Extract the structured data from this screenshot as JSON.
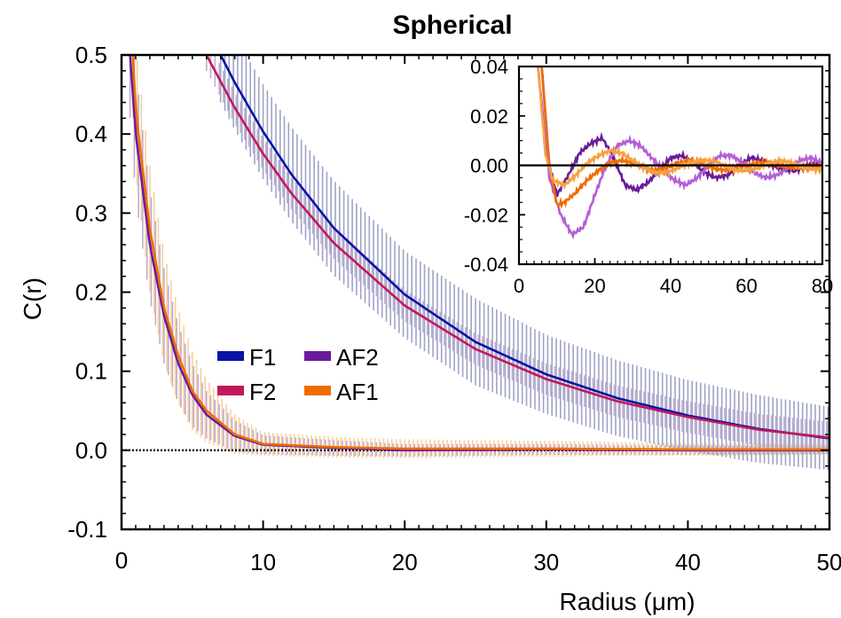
{
  "chart_data": [
    {
      "type": "line",
      "title": "Spherical",
      "xlabel": "Radius (μm)",
      "ylabel": "C(r)",
      "xlim": [
        0,
        50
      ],
      "ylim": [
        -0.1,
        0.5
      ],
      "x_ticks": [
        "0",
        "10",
        "20",
        "30",
        "40",
        "50"
      ],
      "y_ticks": [
        "0.5",
        "0.4",
        "0.3",
        "0.2",
        "0.1",
        "0.0",
        "-0.1"
      ],
      "reference_line": {
        "y": 0.0,
        "style": "dotted",
        "color": "#000000"
      },
      "error_bars": true,
      "legend": {
        "position": "center-left"
      },
      "series": [
        {
          "name": "F1",
          "color": "#0a14a6",
          "bar_color": "#8f94bd",
          "x": [
            7,
            8,
            10,
            12,
            15,
            20,
            25,
            30,
            35,
            40,
            45,
            50
          ],
          "y": [
            0.5,
            0.465,
            0.403,
            0.349,
            0.281,
            0.197,
            0.137,
            0.096,
            0.066,
            0.044,
            0.027,
            0.015
          ],
          "error": [
            0.06,
            0.06,
            0.06,
            0.06,
            0.06,
            0.055,
            0.055,
            0.05,
            0.048,
            0.045,
            0.043,
            0.04
          ]
        },
        {
          "name": "F2",
          "color": "#c2185b",
          "bar_color": "#b3a0c8",
          "x": [
            6,
            8,
            10,
            12,
            15,
            20,
            25,
            30,
            35,
            40,
            45,
            50
          ],
          "y": [
            0.5,
            0.433,
            0.375,
            0.325,
            0.262,
            0.183,
            0.128,
            0.09,
            0.062,
            0.042,
            0.026,
            0.016
          ],
          "error": [
            0.02,
            0.02,
            0.02,
            0.02,
            0.02,
            0.02,
            0.02,
            0.02,
            0.02,
            0.02,
            0.02,
            0.02
          ]
        },
        {
          "name": "AF2",
          "color": "#6a1b9a",
          "bar_color": "#b79bc7",
          "x": [
            0.6,
            1,
            2,
            3,
            4,
            5,
            6,
            8,
            10,
            15,
            20,
            30,
            40,
            50
          ],
          "y": [
            0.5,
            0.4,
            0.26,
            0.17,
            0.11,
            0.07,
            0.045,
            0.018,
            0.007,
            0.003,
            0.0,
            0.001,
            0.0,
            0.0
          ],
          "error": [
            0.08,
            0.08,
            0.07,
            0.06,
            0.05,
            0.04,
            0.03,
            0.02,
            0.012,
            0.01,
            0.008,
            0.007,
            0.006,
            0.005
          ]
        },
        {
          "name": "AF1",
          "color": "#ef6c00",
          "bar_color": "#f5c98f",
          "x": [
            0.8,
            1,
            2,
            3,
            4,
            5,
            6,
            8,
            10,
            15,
            20,
            30,
            40,
            50
          ],
          "y": [
            0.5,
            0.43,
            0.28,
            0.18,
            0.12,
            0.075,
            0.05,
            0.02,
            0.008,
            0.004,
            0.002,
            0.002,
            0.001,
            0.001
          ],
          "error": [
            0.08,
            0.08,
            0.08,
            0.07,
            0.06,
            0.05,
            0.04,
            0.025,
            0.015,
            0.013,
            0.012,
            0.01,
            0.008,
            0.006
          ]
        }
      ]
    },
    {
      "type": "line",
      "title": "",
      "inset": true,
      "xlabel": "",
      "ylabel": "",
      "xlim": [
        0,
        80
      ],
      "ylim": [
        -0.04,
        0.04
      ],
      "x_ticks": [
        "0",
        "20",
        "40",
        "60",
        "80"
      ],
      "y_ticks": [
        "0.04",
        "0.02",
        "0.00",
        "-0.02",
        "-0.04"
      ],
      "reference_line": {
        "y": 0.0,
        "style": "solid",
        "color": "#000000"
      },
      "series": [
        {
          "name": "AF2",
          "color": "#6a1b9a",
          "x": [
            6,
            8,
            10,
            13,
            16,
            19,
            22,
            25,
            28,
            31,
            34,
            37,
            40,
            43,
            46,
            49,
            52,
            55,
            58,
            61,
            64,
            67,
            70,
            73,
            76,
            80
          ],
          "y": [
            0.04,
            0.0,
            -0.012,
            -0.004,
            0.005,
            0.009,
            0.011,
            0.003,
            -0.008,
            -0.01,
            -0.007,
            -0.002,
            0.003,
            0.004,
            0.001,
            -0.003,
            -0.005,
            -0.004,
            0.0,
            0.003,
            0.002,
            0.0,
            -0.002,
            -0.002,
            0.0,
            0.001
          ]
        },
        {
          "name": "AF2 (light)",
          "color": "#b35fd6",
          "x": [
            5,
            8,
            11,
            14,
            17,
            20,
            23,
            26,
            29,
            32,
            35,
            38,
            41,
            44,
            47,
            50,
            53,
            56,
            59,
            62,
            65,
            68,
            71,
            74,
            77,
            80
          ],
          "y": [
            0.04,
            -0.005,
            -0.02,
            -0.028,
            -0.025,
            -0.012,
            0.0,
            0.008,
            0.01,
            0.008,
            0.003,
            -0.002,
            -0.006,
            -0.008,
            -0.005,
            0.0,
            0.004,
            0.004,
            0.001,
            -0.003,
            -0.005,
            -0.004,
            -0.001,
            0.002,
            0.003,
            0.001
          ]
        },
        {
          "name": "AF1",
          "color": "#ef6c00",
          "x": [
            6,
            8,
            10,
            12,
            15,
            18,
            21,
            24,
            27,
            30,
            33,
            36,
            39,
            42,
            45,
            48,
            51,
            54,
            57,
            60,
            63,
            66,
            69,
            72,
            75,
            80
          ],
          "y": [
            0.04,
            0.0,
            -0.016,
            -0.015,
            -0.011,
            -0.006,
            -0.002,
            0.001,
            0.002,
            0.001,
            -0.001,
            -0.002,
            -0.001,
            0.001,
            0.002,
            0.001,
            -0.001,
            -0.002,
            -0.001,
            0.0,
            0.001,
            0.001,
            0.0,
            -0.001,
            -0.001,
            0.0
          ]
        },
        {
          "name": "AF1 (light)",
          "color": "#f7a241",
          "x": [
            5,
            7,
            9,
            12,
            15,
            18,
            21,
            24,
            27,
            30,
            33,
            36,
            39,
            42,
            45,
            48,
            51,
            54,
            57,
            60,
            63,
            66,
            69,
            72,
            75,
            80
          ],
          "y": [
            0.04,
            0.004,
            -0.006,
            -0.008,
            -0.004,
            0.001,
            0.004,
            0.006,
            0.005,
            0.002,
            -0.001,
            -0.003,
            -0.003,
            -0.001,
            0.001,
            0.002,
            0.002,
            0.0,
            -0.002,
            -0.002,
            -0.001,
            0.001,
            0.002,
            0.001,
            -0.001,
            -0.002
          ]
        }
      ]
    }
  ]
}
